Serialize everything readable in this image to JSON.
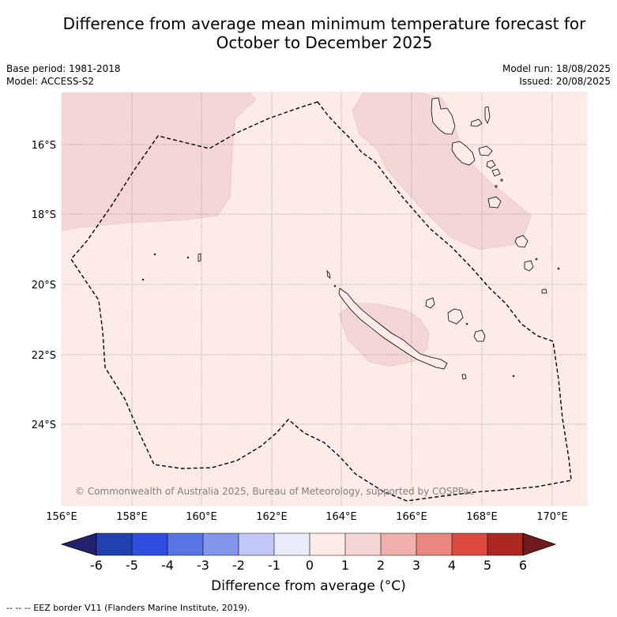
{
  "title_line1": "Difference from average mean minimum temperature forecast for",
  "title_line2": "October to December 2025",
  "meta_left": {
    "base_period": "Base period: 1981-2018",
    "model": "Model: ACCESS-S2"
  },
  "meta_right": {
    "model_run": "Model run: 18/08/2025",
    "issued": "Issued: 20/08/2025"
  },
  "map": {
    "lat_labels": [
      "16°S",
      "18°S",
      "20°S",
      "22°S",
      "24°S"
    ],
    "lon_labels": [
      "156°E",
      "158°E",
      "160°E",
      "162°E",
      "164°E",
      "166°E",
      "168°E",
      "170°E"
    ],
    "copyright": "© Commonwealth of Australia 2025, Bureau of Meteorology, supported by COSPPac",
    "background_color": "#fcebe9",
    "anomaly_0_1_color": "#fdebe8",
    "anomaly_1_2_color": "#f5d6d6"
  },
  "colorbar": {
    "title": "Difference from average (°C)",
    "ticks": [
      "-6",
      "-5",
      "-4",
      "-3",
      "-2",
      "-1",
      "0",
      "1",
      "2",
      "3",
      "4",
      "5",
      "6"
    ],
    "colors": [
      "#23226e",
      "#2240b0",
      "#304ee0",
      "#5a74e6",
      "#8396ec",
      "#c2c8f5",
      "#e8ebfa",
      "#fdebe8",
      "#f5d6d6",
      "#efb0ab",
      "#e8867f",
      "#dd4a3f",
      "#ae2823",
      "#6e1c1c"
    ]
  },
  "footnote": "--  --  -- EEZ border V11 (Flanders Marine Institute, 2019)."
}
